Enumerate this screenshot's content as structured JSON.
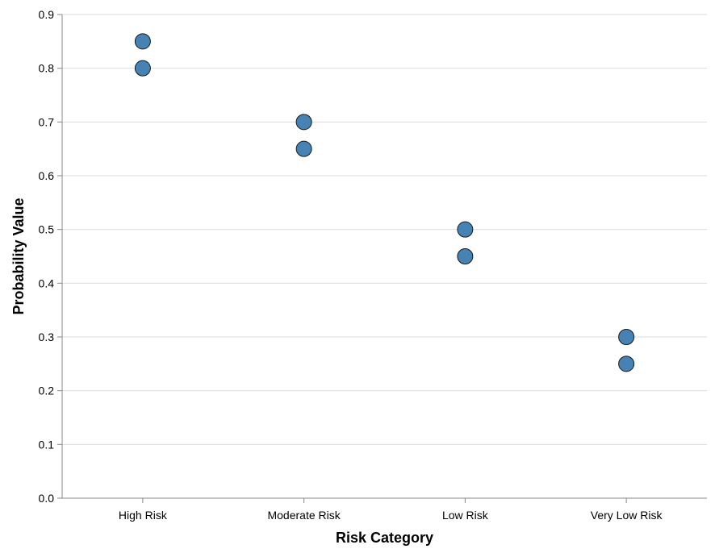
{
  "chart_data": {
    "type": "scatter",
    "title": "",
    "xlabel": "Risk Category",
    "ylabel": "Probability Value",
    "categories": [
      "High Risk",
      "Moderate Risk",
      "Low Risk",
      "Very Low Risk"
    ],
    "points": [
      {
        "x": "High Risk",
        "y": 0.85
      },
      {
        "x": "High Risk",
        "y": 0.8
      },
      {
        "x": "Moderate Risk",
        "y": 0.7
      },
      {
        "x": "Moderate Risk",
        "y": 0.65
      },
      {
        "x": "Low Risk",
        "y": 0.5
      },
      {
        "x": "Low Risk",
        "y": 0.45
      },
      {
        "x": "Very Low Risk",
        "y": 0.3
      },
      {
        "x": "Very Low Risk",
        "y": 0.25
      }
    ],
    "ylim": [
      0,
      0.9
    ],
    "yticks": [
      "0.0",
      "0.1",
      "0.2",
      "0.3",
      "0.4",
      "0.5",
      "0.6",
      "0.7",
      "0.8",
      "0.9"
    ],
    "grid": "horizontal",
    "legend": "none",
    "colors": {
      "point_fill": "#4682b4",
      "point_stroke": "#1a1a1a",
      "grid": "#dddddd",
      "axis": "#888888"
    }
  }
}
